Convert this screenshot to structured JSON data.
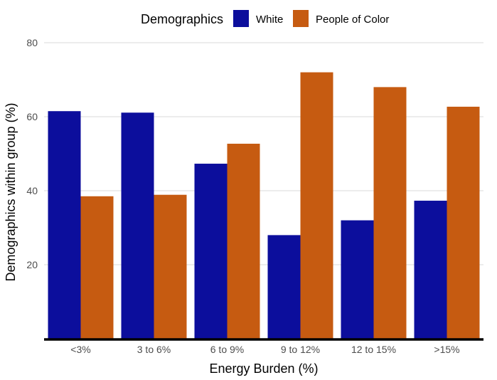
{
  "chart_data": {
    "type": "bar",
    "title": "",
    "xlabel": "Energy Burden (%)",
    "ylabel": "Demographics within group (%)",
    "categories": [
      "<3%",
      "3 to 6%",
      "6 to 9%",
      "9 to 12%",
      "12 to 15%",
      ">15%"
    ],
    "series": [
      {
        "name": "White",
        "color": "#0c0e9c",
        "values": [
          61.5,
          61.1,
          47.3,
          28.0,
          32.0,
          37.3
        ]
      },
      {
        "name": "People of Color",
        "color": "#c65b11",
        "values": [
          38.5,
          38.9,
          52.7,
          72.0,
          68.0,
          62.7
        ]
      }
    ],
    "ylim": [
      0,
      80
    ],
    "yticks": [
      20,
      40,
      60,
      80
    ],
    "grid": true,
    "legend": {
      "title": "Demographics",
      "position": "top"
    }
  }
}
